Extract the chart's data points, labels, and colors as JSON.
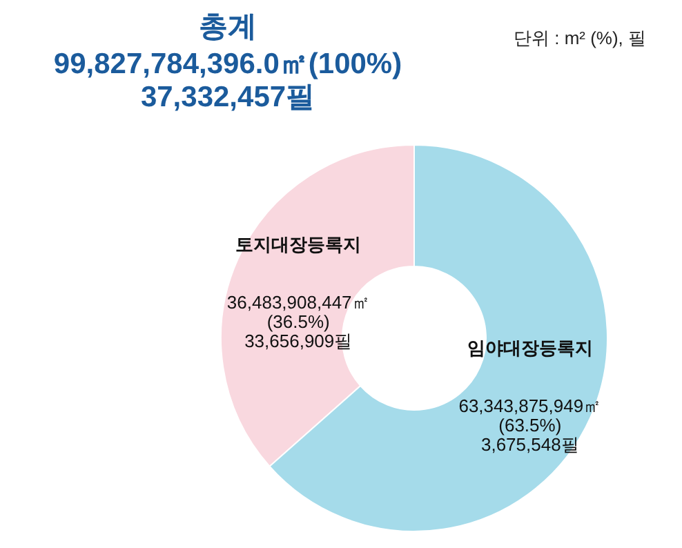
{
  "chart_data": {
    "type": "donut",
    "title": "총계",
    "subtitle": "99,827,784,396.0㎡(100%)\n37,332,457필",
    "annotations": [
      "단위 : m² (%), 필"
    ],
    "categories": [
      "토지대장등록지",
      "임야대장등록지"
    ],
    "values": [
      36483908447,
      63343875949
    ],
    "colors": [
      "#f9d8df",
      "#a5dbea"
    ],
    "value_labels": [
      "36,483,908,447㎡\n(36.5%)\n33,656,909필",
      "63,343,875,949㎡\n(63.5%)\n3,675,548필"
    ]
  }
}
